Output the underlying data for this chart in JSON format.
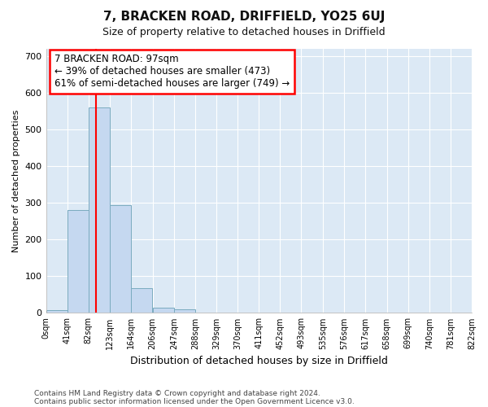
{
  "title": "7, BRACKEN ROAD, DRIFFIELD, YO25 6UJ",
  "subtitle": "Size of property relative to detached houses in Driffield",
  "xlabel": "Distribution of detached houses by size in Driffield",
  "ylabel": "Number of detached properties",
  "bin_edges": [
    0,
    41,
    82,
    123,
    164,
    206,
    247,
    288,
    329,
    370,
    411,
    452,
    493,
    535,
    576,
    617,
    658,
    699,
    740,
    781,
    822
  ],
  "bar_heights": [
    8,
    280,
    560,
    295,
    68,
    15,
    10,
    0,
    0,
    0,
    0,
    0,
    0,
    0,
    0,
    0,
    0,
    0,
    0,
    0
  ],
  "bar_color": "#c5d8f0",
  "bar_edgecolor": "#7aabbf",
  "red_line_x": 97,
  "annotation_text": "7 BRACKEN ROAD: 97sqm\n← 39% of detached houses are smaller (473)\n61% of semi-detached houses are larger (749) →",
  "annotation_box_edgecolor": "red",
  "annotation_box_facecolor": "white",
  "ylim": [
    0,
    720
  ],
  "yticks": [
    0,
    100,
    200,
    300,
    400,
    500,
    600,
    700
  ],
  "footer1": "Contains HM Land Registry data © Crown copyright and database right 2024.",
  "footer2": "Contains public sector information licensed under the Open Government Licence v3.0.",
  "bg_color": "#ffffff",
  "plot_bg_color": "#dce9f5",
  "grid_color": "#ffffff",
  "tick_labels": [
    "0sqm",
    "41sqm",
    "82sqm",
    "123sqm",
    "164sqm",
    "206sqm",
    "247sqm",
    "288sqm",
    "329sqm",
    "370sqm",
    "411sqm",
    "452sqm",
    "493sqm",
    "535sqm",
    "576sqm",
    "617sqm",
    "658sqm",
    "699sqm",
    "740sqm",
    "781sqm",
    "822sqm"
  ]
}
